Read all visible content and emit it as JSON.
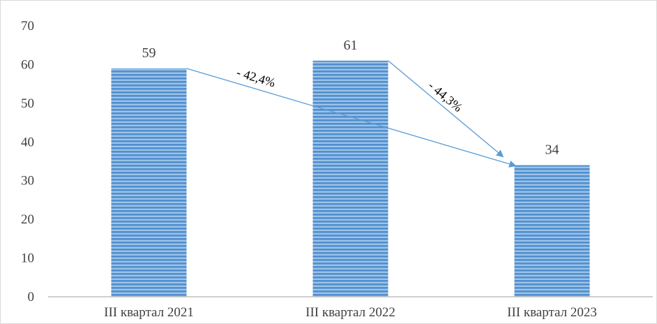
{
  "chart_data": {
    "type": "bar",
    "categories": [
      "III квартал 2021",
      "III квартал 2022",
      "III квартал 2023"
    ],
    "values": [
      59,
      61,
      34
    ],
    "data_labels": [
      "59",
      "61",
      "34"
    ],
    "title": "",
    "xlabel": "",
    "ylabel": "",
    "ylim": [
      0,
      70
    ],
    "yticks": [
      0,
      10,
      20,
      30,
      40,
      50,
      60,
      70
    ],
    "ytick_labels": [
      "0",
      "10",
      "20",
      "30",
      "40",
      "50",
      "60",
      "70"
    ],
    "grid": false,
    "legend": "none",
    "bar_style": "horizontal-striped",
    "colors": {
      "bar_fill": "#9dc3e6",
      "bar_stripe": "#4f8ed0",
      "axis": "#bfbfbf",
      "arrow": "#5b9bd5",
      "text": "#404040"
    },
    "annotations": [
      {
        "from_category": 0,
        "to_category": 2,
        "label": "- 42,4%"
      },
      {
        "from_category": 1,
        "to_category": 2,
        "label": "- 44,3%"
      }
    ]
  }
}
